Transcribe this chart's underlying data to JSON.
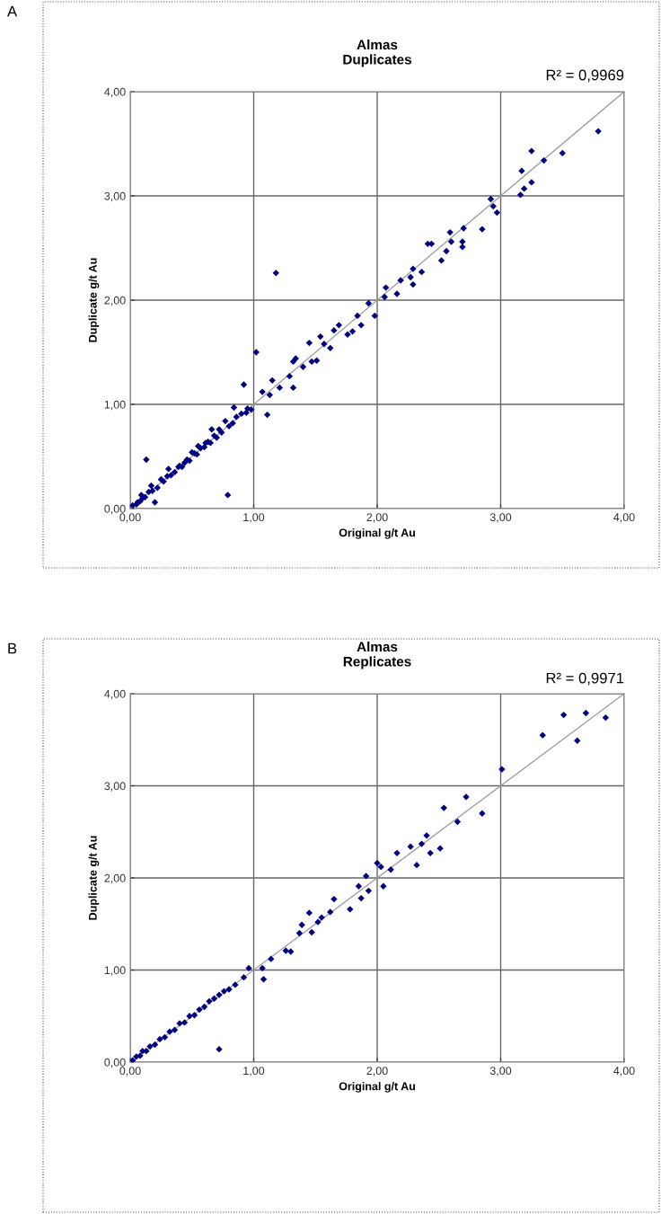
{
  "chart_data": [
    {
      "type": "scatter",
      "title": "Almas\nDuplicates",
      "xlabel": "Original g/t Au",
      "ylabel": "Duplicate g/t Au",
      "annotations": [
        "A",
        "R² = 0,9969"
      ],
      "marker": "diamond",
      "grid": true,
      "xlim": [
        0,
        4
      ],
      "ylim": [
        0,
        4
      ],
      "xticks": [
        {
          "value": 0,
          "label": "0,00"
        },
        {
          "value": 1,
          "label": "1,00"
        },
        {
          "value": 2,
          "label": "2,00"
        },
        {
          "value": 3,
          "label": "3,00"
        },
        {
          "value": 4,
          "label": "4,00"
        }
      ],
      "yticks": [
        {
          "value": 0,
          "label": "0,00"
        },
        {
          "value": 1,
          "label": "1,00"
        },
        {
          "value": 2,
          "label": "2,00"
        },
        {
          "value": 3,
          "label": "3,00"
        },
        {
          "value": 4,
          "label": "4,00"
        }
      ],
      "series": [
        {
          "color": "#000080",
          "x": [
            3.79,
            3.25,
            3.5,
            3.35,
            3.17,
            3.25,
            3.19,
            3.16,
            2.92,
            2.94,
            2.97,
            2.85,
            2.7,
            2.59,
            2.6,
            2.69,
            2.69,
            2.56,
            2.52,
            2.41,
            2.44,
            1.18,
            2.29,
            2.36,
            2.27,
            2.29,
            2.19,
            2.16,
            2.07,
            2.06,
            1.93,
            1.98,
            1.84,
            1.87,
            1.8,
            1.76,
            1.69,
            1.65,
            1.62,
            1.54,
            1.45,
            1.57,
            1.51,
            1.47,
            1.4,
            1.32,
            1.34,
            1.32,
            1.29,
            1.21,
            1.15,
            1.13,
            1.07,
            1.02,
            0.92,
            1.11,
            0.98,
            0.94,
            0.84,
            0.83,
            0.77,
            0.72,
            0.66,
            0.61,
            0.55,
            0.5,
            0.44,
            0.39,
            0.31,
            0.25,
            0.17,
            0.13,
            0.79,
            0.2,
            0.09,
            0.06,
            0.02,
            0.05,
            0.08,
            0.1,
            0.12,
            0.15,
            0.18,
            0.22,
            0.27,
            0.3,
            0.33,
            0.36,
            0.4,
            0.42,
            0.46,
            0.48,
            0.52,
            0.54,
            0.57,
            0.6,
            0.63,
            0.65,
            0.68,
            0.7,
            0.74,
            0.8,
            0.86,
            0.9,
            0.95
          ],
          "values": [
            3.62,
            3.43,
            3.41,
            3.34,
            3.24,
            3.13,
            3.07,
            3.01,
            2.97,
            2.9,
            2.84,
            2.68,
            2.69,
            2.65,
            2.56,
            2.56,
            2.51,
            2.47,
            2.38,
            2.54,
            2.54,
            2.26,
            2.3,
            2.27,
            2.22,
            2.15,
            2.19,
            2.06,
            2.12,
            2.03,
            1.97,
            1.85,
            1.85,
            1.76,
            1.7,
            1.67,
            1.76,
            1.71,
            1.54,
            1.65,
            1.59,
            1.58,
            1.42,
            1.41,
            1.36,
            1.41,
            1.44,
            1.16,
            1.27,
            1.16,
            1.23,
            1.09,
            1.12,
            1.5,
            1.19,
            0.9,
            0.95,
            0.92,
            0.97,
            0.82,
            0.84,
            0.76,
            0.76,
            0.63,
            0.6,
            0.54,
            0.44,
            0.4,
            0.38,
            0.28,
            0.22,
            0.47,
            0.13,
            0.06,
            0.13,
            0.06,
            0.03,
            0.04,
            0.07,
            0.1,
            0.11,
            0.16,
            0.17,
            0.2,
            0.26,
            0.31,
            0.32,
            0.35,
            0.41,
            0.4,
            0.47,
            0.46,
            0.53,
            0.52,
            0.58,
            0.59,
            0.64,
            0.63,
            0.7,
            0.68,
            0.73,
            0.79,
            0.88,
            0.91,
            0.96
          ]
        },
        {
          "type": "line",
          "color": "#a0a0a0",
          "x": [
            0,
            4
          ],
          "values": [
            0,
            4
          ],
          "marker": "none"
        }
      ]
    },
    {
      "type": "scatter",
      "title": "Almas\nReplicates",
      "xlabel": "Original g/t Au",
      "ylabel": "Duplicate g/t Au",
      "annotations": [
        "B",
        "R² = 0,9971"
      ],
      "marker": "diamond",
      "grid": true,
      "xlim": [
        0,
        4
      ],
      "ylim": [
        0,
        4
      ],
      "xticks": [
        {
          "value": 0,
          "label": "0,00"
        },
        {
          "value": 1,
          "label": "1,00"
        },
        {
          "value": 2,
          "label": "2,00"
        },
        {
          "value": 3,
          "label": "3,00"
        },
        {
          "value": 4,
          "label": "4,00"
        }
      ],
      "yticks": [
        {
          "value": 0,
          "label": "0,00"
        },
        {
          "value": 1,
          "label": "1,00"
        },
        {
          "value": 2,
          "label": "2,00"
        },
        {
          "value": 3,
          "label": "3,00"
        },
        {
          "value": 4,
          "label": "4,00"
        }
      ],
      "series": [
        {
          "color": "#000080",
          "x": [
            3.85,
            3.69,
            3.51,
            3.34,
            3.62,
            3.01,
            2.72,
            2.54,
            2.85,
            2.65,
            2.4,
            2.27,
            2.36,
            2.51,
            2.43,
            2.16,
            2.32,
            2.11,
            2.0,
            2.03,
            1.91,
            2.05,
            1.85,
            1.93,
            1.87,
            1.78,
            1.65,
            1.62,
            1.55,
            1.45,
            1.52,
            1.47,
            1.39,
            1.37,
            1.26,
            1.3,
            1.14,
            1.07,
            1.08,
            0.96,
            0.92,
            0.85,
            0.02,
            0.05,
            0.08,
            0.1,
            0.13,
            0.16,
            0.2,
            0.24,
            0.28,
            0.32,
            0.36,
            0.4,
            0.44,
            0.48,
            0.52,
            0.56,
            0.6,
            0.64,
            0.68,
            0.72,
            0.76,
            0.8,
            0.72
          ],
          "values": [
            3.74,
            3.79,
            3.77,
            3.55,
            3.49,
            3.18,
            2.88,
            2.76,
            2.7,
            2.61,
            2.46,
            2.34,
            2.37,
            2.32,
            2.27,
            2.27,
            2.14,
            2.09,
            2.16,
            2.12,
            2.02,
            1.91,
            1.91,
            1.86,
            1.78,
            1.66,
            1.77,
            1.63,
            1.57,
            1.62,
            1.52,
            1.41,
            1.49,
            1.4,
            1.21,
            1.2,
            1.12,
            1.02,
            0.9,
            1.02,
            0.92,
            0.84,
            0.02,
            0.06,
            0.07,
            0.12,
            0.12,
            0.17,
            0.19,
            0.25,
            0.27,
            0.33,
            0.35,
            0.42,
            0.43,
            0.5,
            0.51,
            0.57,
            0.6,
            0.66,
            0.69,
            0.73,
            0.77,
            0.79,
            0.14
          ]
        },
        {
          "type": "line",
          "color": "#a0a0a0",
          "x": [
            0,
            4
          ],
          "values": [
            0,
            4
          ],
          "marker": "none"
        }
      ]
    }
  ]
}
